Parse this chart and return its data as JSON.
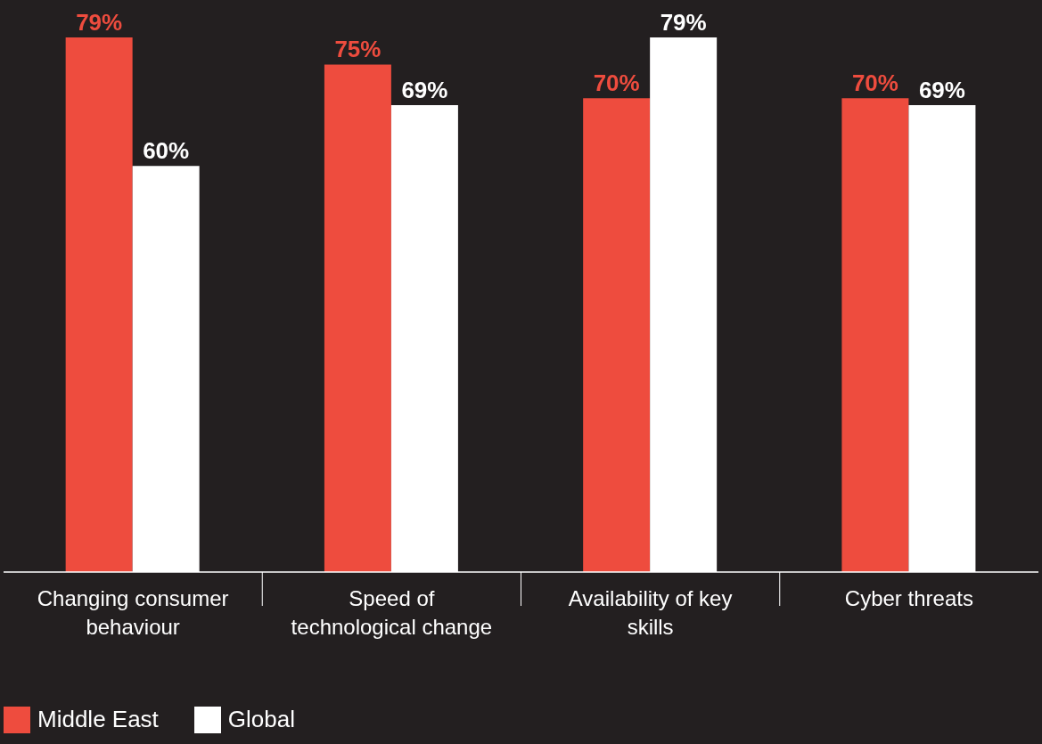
{
  "chart_data": {
    "type": "bar",
    "categories": [
      "Changing consumer behaviour",
      "Speed of technological change",
      "Availability of key skills",
      "Cyber threats"
    ],
    "series": [
      {
        "name": "Middle East",
        "color": "#ee4c3e",
        "values": [
          79,
          75,
          70,
          70
        ],
        "value_labels": [
          "79%",
          "75%",
          "70%",
          "70%"
        ]
      },
      {
        "name": "Global",
        "color": "#ffffff",
        "values": [
          60,
          69,
          79,
          69
        ],
        "value_labels": [
          "60%",
          "69%",
          "79%",
          "69%"
        ]
      }
    ],
    "grid": false,
    "legend": "bottom left"
  }
}
